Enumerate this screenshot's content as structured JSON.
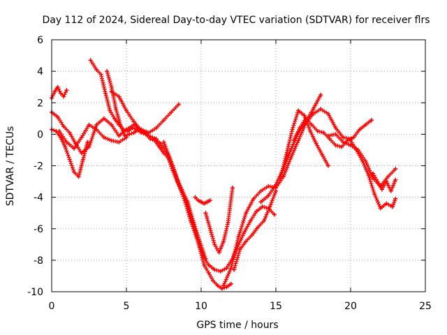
{
  "chart_data": {
    "type": "scatter",
    "title": "Day 112 of 2024, Sidereal Day-to-day VTEC variation (SDTVAR) for receiver flrs",
    "xlabel": "GPS time / hours",
    "ylabel": "SDTVAR / TECUs",
    "xlim": [
      0,
      25
    ],
    "ylim": [
      -10,
      6
    ],
    "xticks": [
      "0",
      "5",
      "10",
      "15",
      "20",
      "25"
    ],
    "yticks": [
      "-10",
      "-8",
      "-6",
      "-4",
      "-2",
      "0",
      "2",
      "4",
      "6"
    ],
    "grid": true,
    "marker": "plus",
    "color": "#ff0000",
    "series": [
      {
        "x": [
          0,
          0.4,
          0.8,
          1.2,
          1.6,
          2.0,
          2.5,
          3.0,
          3.5,
          4.0,
          4.5,
          5.0,
          5.5,
          6.0,
          6.5,
          7.0,
          7.5,
          8.0,
          8.5
        ],
        "y": [
          1.4,
          1.1,
          0.5,
          0.1,
          -0.6,
          -1.2,
          -0.8,
          0.6,
          1.0,
          0.6,
          -0.1,
          0.3,
          0.6,
          0.3,
          0.1,
          0.4,
          0.9,
          1.4,
          1.9
        ]
      },
      {
        "x": [
          0,
          0.3,
          0.6,
          0.9,
          1.2,
          1.5,
          1.8,
          2.1,
          2.4
        ],
        "y": [
          0.3,
          0.2,
          -0.2,
          -0.8,
          -1.6,
          -2.4,
          -2.7,
          -1.6,
          -0.5
        ]
      },
      {
        "x": [
          0,
          0.2,
          0.4,
          0.6,
          0.8,
          1.0
        ],
        "y": [
          2.3,
          2.7,
          3.0,
          2.6,
          2.4,
          2.8
        ]
      },
      {
        "x": [
          0.5,
          1.0,
          1.5,
          2.0,
          2.5,
          3.0,
          3.5,
          4.0,
          4.5,
          5.0
        ],
        "y": [
          0.2,
          -0.5,
          -0.9,
          -0.2,
          0.6,
          0.3,
          -0.2,
          -0.4,
          -0.5,
          -0.2
        ]
      },
      {
        "x": [
          2.6,
          3.0,
          3.3,
          3.6,
          3.9,
          4.2,
          4.5,
          4.8,
          5.1,
          5.4,
          5.7,
          6.0,
          6.3,
          6.6,
          6.9,
          7.2,
          7.5,
          7.8,
          8.1,
          8.4,
          8.7,
          9.0,
          9.3,
          9.6,
          9.9,
          10.2,
          10.5,
          10.8,
          11.1,
          11.4,
          11.7,
          12.0
        ],
        "y": [
          4.7,
          4.1,
          3.8,
          2.6,
          1.5,
          1.0,
          0.6,
          0.3,
          0.2,
          0.4,
          0.3,
          0.1,
          0.0,
          -0.3,
          -0.4,
          -0.8,
          -1.2,
          -1.5,
          -2.3,
          -3.0,
          -3.6,
          -4.3,
          -5.2,
          -6.1,
          -7.2,
          -8.3,
          -8.8,
          -9.3,
          -9.6,
          -9.8,
          -9.7,
          -9.5
        ]
      },
      {
        "x": [
          3.7,
          4.0,
          4.3,
          4.6,
          4.9,
          5.2,
          5.5,
          5.8,
          6.1,
          6.4
        ],
        "y": [
          4.0,
          3.0,
          1.6,
          0.6,
          -0.1,
          0.0,
          0.1,
          0.3,
          0.2,
          0.0
        ]
      },
      {
        "x": [
          4.0,
          4.5,
          5.0,
          5.5,
          6.0,
          6.5,
          7.0
        ],
        "y": [
          2.7,
          2.4,
          1.5,
          0.8,
          0.2,
          -0.1,
          -0.3
        ]
      },
      {
        "x": [
          6.9,
          7.3,
          7.7,
          8.1,
          8.5,
          8.9,
          9.3,
          9.7,
          10.1,
          10.5,
          10.9,
          11.3,
          11.7,
          12.1,
          12.5,
          12.9,
          13.3,
          13.7,
          14.1,
          14.5,
          14.9
        ],
        "y": [
          -0.3,
          -0.6,
          -1.2,
          -2.0,
          -3.2,
          -4.2,
          -5.5,
          -6.6,
          -7.7,
          -8.3,
          -8.6,
          -8.7,
          -8.5,
          -7.9,
          -7.0,
          -6.2,
          -5.5,
          -4.9,
          -4.6,
          -4.7,
          -5.1
        ]
      },
      {
        "x": [
          7.5,
          7.9,
          8.3,
          8.7,
          9.1,
          9.5,
          9.9,
          10.3
        ],
        "y": [
          -0.5,
          -1.5,
          -2.6,
          -3.5,
          -4.3,
          -5.6,
          -6.8,
          -7.9
        ]
      },
      {
        "x": [
          9.6,
          9.8,
          10.0,
          10.2,
          10.4,
          10.6
        ],
        "y": [
          -4.0,
          -4.2,
          -4.3,
          -4.4,
          -4.3,
          -4.2
        ]
      },
      {
        "x": [
          10.3,
          10.6,
          10.9,
          11.2,
          11.5,
          11.8,
          12.1
        ],
        "y": [
          -5.0,
          -6.0,
          -7.0,
          -7.5,
          -6.8,
          -5.6,
          -3.4
        ]
      },
      {
        "x": [
          11.5,
          12.0,
          12.5,
          13.0,
          13.5,
          14.0,
          14.5,
          15.0,
          15.5,
          16.0,
          16.5,
          17.0,
          17.5,
          18.0,
          18.5,
          19.0,
          19.5,
          20.0
        ],
        "y": [
          -9.6,
          -8.5,
          -6.5,
          -5.0,
          -4.1,
          -3.6,
          -3.3,
          -3.4,
          -2.7,
          -1.5,
          -0.4,
          0.7,
          1.3,
          1.6,
          1.3,
          0.4,
          -0.2,
          -0.3
        ]
      },
      {
        "x": [
          12.2,
          12.6,
          13.0,
          13.4,
          13.8,
          14.2,
          14.6,
          15.0
        ],
        "y": [
          -8.6,
          -7.3,
          -6.8,
          -6.4,
          -5.9,
          -5.5,
          -4.6,
          -3.6
        ]
      },
      {
        "x": [
          14.0,
          14.5,
          15.0,
          15.5,
          16.0,
          16.5,
          17.0,
          17.5,
          18.0
        ],
        "y": [
          -4.3,
          -3.9,
          -3.2,
          -2.2,
          -1.0,
          0.1,
          0.8,
          1.6,
          2.5
        ]
      },
      {
        "x": [
          15.3,
          15.7,
          16.1,
          16.5,
          16.9,
          17.3,
          17.7,
          18.1,
          18.5
        ],
        "y": [
          -2.8,
          -1.3,
          0.3,
          1.5,
          1.2,
          0.2,
          -0.6,
          -1.3,
          -2.0
        ]
      },
      {
        "x": [
          16.2,
          16.6,
          17.0,
          17.4,
          17.8,
          18.2,
          18.6,
          19.0,
          19.4,
          19.8,
          20.2,
          20.6,
          21.0,
          21.4
        ],
        "y": [
          -0.4,
          0.4,
          1.0,
          0.6,
          0.2,
          0.1,
          -0.3,
          -0.7,
          -0.8,
          -0.4,
          -0.2,
          0.3,
          0.6,
          0.9
        ]
      },
      {
        "x": [
          18.5,
          19.0,
          19.5,
          20.0,
          20.5,
          21.0,
          21.5,
          22.0,
          22.5,
          23.0
        ],
        "y": [
          -0.1,
          0.0,
          -0.5,
          -0.7,
          -1.0,
          -1.7,
          -2.8,
          -3.3,
          -2.7,
          -2.2
        ]
      },
      {
        "x": [
          20.0,
          20.4,
          20.8,
          21.2,
          21.6,
          22.0,
          22.4,
          22.8,
          23.0
        ],
        "y": [
          -0.4,
          -1.0,
          -1.7,
          -2.6,
          -3.8,
          -4.7,
          -4.4,
          -4.6,
          -4.1
        ]
      },
      {
        "x": [
          21.5,
          21.8,
          22.1,
          22.4,
          22.7,
          23.0
        ],
        "y": [
          -2.5,
          -3.0,
          -3.5,
          -3.0,
          -3.6,
          -2.9
        ]
      }
    ]
  }
}
